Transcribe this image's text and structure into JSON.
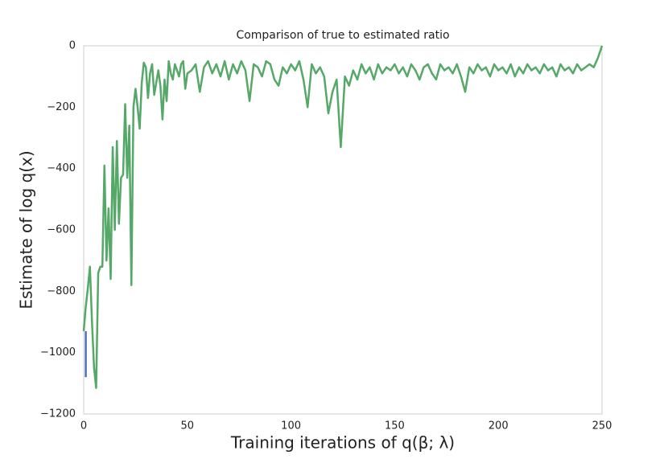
{
  "chart_data": {
    "type": "line",
    "title": "Comparison of true to estimated ratio",
    "x_label": "Training iterations of q(β; λ)",
    "y_label": "Estimate of log q(x)",
    "xlim": [
      0,
      250
    ],
    "xticks": [
      0,
      50,
      100,
      150,
      200,
      250
    ],
    "ylim": [
      -1200,
      0
    ],
    "yticks": [
      {
        "value": -1200,
        "label": "−1200"
      },
      {
        "value": -1000,
        "label": "−1000"
      },
      {
        "value": -800,
        "label": "−800"
      },
      {
        "value": -600,
        "label": "−600"
      },
      {
        "value": -400,
        "label": "−400"
      },
      {
        "value": -200,
        "label": "−200"
      },
      0
    ],
    "grid": false,
    "series": [
      {
        "color": "#4c72b0",
        "x": [
          1,
          1
        ],
        "values": [
          -1080,
          -930
        ]
      },
      {
        "color": "#55a868",
        "x": [
          0,
          1,
          2,
          3,
          4,
          5,
          6,
          7,
          8,
          9,
          10,
          11,
          12,
          13,
          14,
          15,
          16,
          17,
          18,
          19,
          20,
          21,
          22,
          23,
          24,
          25,
          26,
          27,
          28,
          29,
          30,
          31,
          32,
          33,
          34,
          35,
          36,
          37,
          38,
          39,
          40,
          41,
          42,
          43,
          44,
          45,
          46,
          47,
          48,
          49,
          50,
          52,
          54,
          56,
          58,
          60,
          62,
          64,
          66,
          68,
          70,
          72,
          74,
          76,
          78,
          80,
          82,
          84,
          86,
          88,
          90,
          92,
          94,
          96,
          98,
          100,
          102,
          104,
          106,
          108,
          110,
          112,
          114,
          116,
          118,
          120,
          122,
          124,
          126,
          128,
          130,
          132,
          134,
          136,
          138,
          140,
          142,
          144,
          146,
          148,
          150,
          152,
          154,
          156,
          158,
          160,
          162,
          164,
          166,
          168,
          170,
          172,
          174,
          176,
          178,
          180,
          182,
          184,
          186,
          188,
          190,
          192,
          194,
          196,
          198,
          200,
          202,
          204,
          206,
          208,
          210,
          212,
          214,
          216,
          218,
          220,
          222,
          224,
          226,
          228,
          230,
          232,
          234,
          236,
          238,
          240,
          242,
          244,
          246,
          248,
          250
        ],
        "values": [
          -930,
          -850,
          -790,
          -720,
          -900,
          -1050,
          -1115,
          -740,
          -720,
          -720,
          -390,
          -700,
          -530,
          -760,
          -330,
          -600,
          -310,
          -580,
          -430,
          -420,
          -190,
          -430,
          -260,
          -780,
          -200,
          -140,
          -200,
          -270,
          -120,
          -55,
          -70,
          -170,
          -90,
          -60,
          -160,
          -120,
          -80,
          -130,
          -240,
          -110,
          -180,
          -50,
          -90,
          -110,
          -60,
          -80,
          -100,
          -60,
          -50,
          -140,
          -90,
          -80,
          -60,
          -150,
          -70,
          -50,
          -90,
          -60,
          -100,
          -50,
          -110,
          -60,
          -90,
          -50,
          -80,
          -180,
          -60,
          -70,
          -100,
          -50,
          -60,
          -110,
          -130,
          -70,
          -90,
          -60,
          -80,
          -50,
          -110,
          -200,
          -60,
          -90,
          -70,
          -100,
          -220,
          -150,
          -110,
          -330,
          -100,
          -130,
          -80,
          -110,
          -60,
          -90,
          -70,
          -110,
          -60,
          -90,
          -70,
          -80,
          -60,
          -90,
          -70,
          -100,
          -60,
          -80,
          -110,
          -70,
          -60,
          -90,
          -110,
          -60,
          -80,
          -70,
          -90,
          -60,
          -100,
          -150,
          -70,
          -90,
          -60,
          -80,
          -70,
          -100,
          -60,
          -80,
          -70,
          -90,
          -60,
          -100,
          -70,
          -90,
          -60,
          -80,
          -70,
          -90,
          -60,
          -80,
          -70,
          -100,
          -60,
          -80,
          -70,
          -90,
          -60,
          -80,
          -70,
          -60,
          -70,
          -40,
          0
        ]
      }
    ]
  }
}
